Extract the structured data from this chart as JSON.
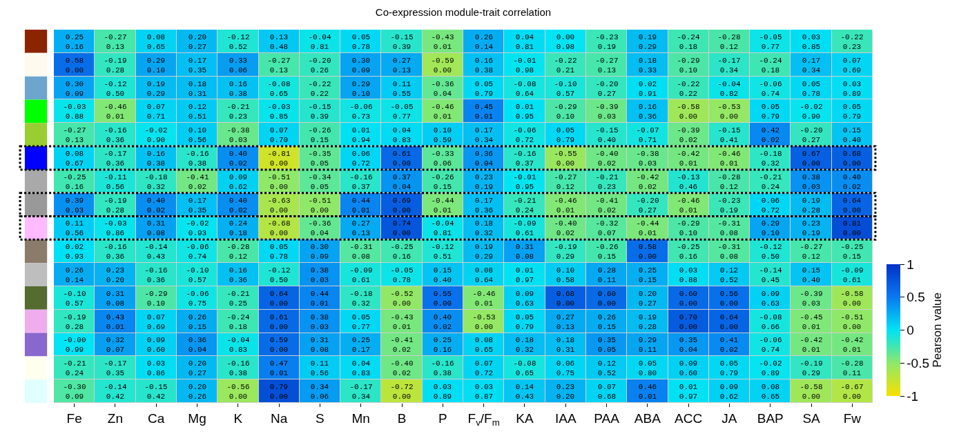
{
  "chart_data": {
    "type": "heatmap",
    "title": "Co-expression module-trait correlation",
    "clabel": "Pearson value",
    "categories": [
      "Fe",
      "Zn",
      "Ca",
      "Mg",
      "K",
      "Na",
      "S",
      "Mn",
      "B",
      "P",
      "F$_{v}$/F$_{m}$",
      "KA",
      "IAA",
      "PAA",
      "ABA",
      "ACC",
      "JA",
      "BAP",
      "SA",
      "Fw"
    ],
    "y_categories": [
      null,
      null,
      null,
      null,
      null,
      null,
      null,
      null,
      null,
      null,
      null,
      null,
      null,
      null,
      null,
      null
    ],
    "tick_labels": "x",
    "clim": [
      -1,
      1
    ],
    "cticks": [
      -1,
      -0.5,
      0,
      0.5,
      1
    ],
    "cells": [
      [
        0.25,
        -0.27,
        0.08,
        0.2,
        -0.12,
        0.13,
        -0.04,
        0.05,
        -0.15,
        -0.43,
        0.26,
        0.04,
        0.0,
        -0.23,
        0.19,
        -0.24,
        -0.28,
        -0.05,
        0.03,
        -0.22
      ],
      [
        0.58,
        -0.19,
        0.29,
        0.17,
        0.33,
        -0.27,
        -0.2,
        0.3,
        0.27,
        -0.59,
        0.16,
        -0.01,
        -0.22,
        -0.27,
        0.18,
        -0.29,
        -0.17,
        -0.24,
        0.17,
        0.07
      ],
      [
        0.3,
        -0.12,
        0.19,
        0.18,
        0.16,
        -0.08,
        -0.22,
        0.29,
        0.11,
        -0.36,
        0.05,
        -0.08,
        -0.1,
        -0.2,
        0.02,
        -0.22,
        -0.04,
        -0.06,
        0.05,
        0.03
      ],
      [
        -0.03,
        -0.46,
        0.07,
        0.12,
        -0.21,
        -0.03,
        -0.15,
        -0.06,
        -0.05,
        -0.46,
        0.45,
        0.01,
        -0.29,
        -0.39,
        0.16,
        -0.58,
        -0.53,
        0.05,
        -0.02,
        0.05
      ],
      [
        -0.27,
        -0.16,
        -0.02,
        0.1,
        -0.38,
        0.07,
        -0.26,
        0.01,
        0.04,
        0.1,
        0.17,
        -0.06,
        0.05,
        -0.15,
        -0.07,
        -0.39,
        -0.15,
        0.42,
        -0.2,
        0.15
      ],
      [
        0.08,
        -0.17,
        0.16,
        -0.16,
        0.4,
        -0.81,
        -0.35,
        0.06,
        0.61,
        -0.33,
        0.36,
        -0.16,
        -0.55,
        -0.4,
        -0.38,
        -0.42,
        -0.46,
        -0.18,
        0.67,
        0.68
      ],
      [
        -0.25,
        -0.11,
        -0.18,
        -0.41,
        0.09,
        -0.51,
        -0.34,
        -0.16,
        0.37,
        -0.26,
        0.23,
        -0.01,
        -0.27,
        -0.21,
        -0.42,
        -0.13,
        -0.28,
        -0.21,
        0.38,
        0.4
      ],
      [
        0.39,
        -0.19,
        0.4,
        0.17,
        0.4,
        -0.63,
        -0.51,
        0.44,
        0.69,
        -0.44,
        0.17,
        -0.21,
        -0.46,
        -0.41,
        -0.2,
        -0.46,
        -0.23,
        0.06,
        0.19,
        0.64
      ],
      [
        0.11,
        -0.03,
        0.31,
        -0.02,
        0.24,
        -0.68,
        -0.36,
        0.27,
        0.74,
        -0.04,
        0.18,
        -0.09,
        -0.4,
        -0.32,
        -0.44,
        -0.29,
        -0.31,
        0.29,
        0.23,
        0.81
      ],
      [
        0.02,
        -0.16,
        -0.14,
        -0.06,
        -0.28,
        0.05,
        0.3,
        -0.31,
        -0.25,
        -0.12,
        0.19,
        0.31,
        -0.19,
        -0.26,
        0.58,
        -0.25,
        -0.31,
        -0.12,
        -0.27,
        -0.25
      ],
      [
        0.26,
        0.23,
        -0.16,
        -0.1,
        0.16,
        -0.12,
        0.38,
        -0.09,
        -0.05,
        0.15,
        0.08,
        0.01,
        0.1,
        0.28,
        0.25,
        0.03,
        0.12,
        -0.14,
        0.15,
        -0.09
      ],
      [
        -0.1,
        0.31,
        -0.29,
        -0.06,
        -0.21,
        0.64,
        0.44,
        -0.18,
        -0.52,
        0.55,
        -0.46,
        0.09,
        0.68,
        0.6,
        0.2,
        0.6,
        0.56,
        0.09,
        -0.39,
        -0.58
      ],
      [
        -0.19,
        0.43,
        0.07,
        0.26,
        -0.24,
        0.61,
        0.38,
        0.05,
        -0.43,
        0.4,
        -0.53,
        0.05,
        0.27,
        0.26,
        0.19,
        0.7,
        0.64,
        -0.08,
        -0.45,
        -0.51
      ],
      [
        -0.0,
        0.32,
        0.09,
        0.36,
        -0.04,
        0.59,
        0.31,
        0.25,
        -0.41,
        0.25,
        0.08,
        0.18,
        0.18,
        0.35,
        0.29,
        0.35,
        0.41,
        -0.06,
        -0.42,
        -0.42
      ],
      [
        -0.21,
        -0.17,
        0.03,
        0.2,
        -0.16,
        0.47,
        0.11,
        0.04,
        -0.4,
        -0.16,
        0.07,
        -0.08,
        0.06,
        0.12,
        0.05,
        0.09,
        0.05,
        -0.02,
        -0.19,
        -0.28
      ],
      [
        -0.3,
        -0.14,
        -0.15,
        0.2,
        -0.56,
        0.79,
        0.34,
        -0.17,
        -0.72,
        0.03,
        0.03,
        0.14,
        0.23,
        0.07,
        0.46,
        0.01,
        0.09,
        0.08,
        -0.58,
        -0.67
      ]
    ],
    "cell_labels": [
      [
        "0.25\n0.16",
        "-0.27\n0.13",
        "0.08\n0.65",
        "0.20\n0.27",
        "-0.12\n0.52",
        "0.13\n0.48",
        "-0.04\n0.81",
        "0.05\n0.78",
        "-0.15\n0.39",
        "-0.43\n0.01",
        "0.26\n0.14",
        "0.04\n0.81",
        "0.00\n0.98",
        "-0.23\n0.19",
        "0.19\n0.29",
        "-0.24\n0.18",
        "-0.28\n0.12",
        "-0.05\n0.77",
        "0.03\n0.85",
        "-0.22\n0.23"
      ],
      [
        "0.58\n0.00",
        "-0.19\n0.28",
        "0.29\n0.10",
        "0.17\n0.35",
        "0.33\n0.06",
        "-0.27\n0.13",
        "-0.20\n0.26",
        "0.30\n0.09",
        "0.27\n0.13",
        "-0.59\n0.00",
        "0.16\n0.38",
        "-0.01\n0.98",
        "-0.22\n0.21",
        "-0.27\n0.13",
        "0.18\n0.33",
        "-0.29\n0.10",
        "-0.17\n0.34",
        "-0.24\n0.18",
        "0.17\n0.34",
        "0.07\n0.69"
      ],
      [
        "0.30\n0.09",
        "-0.12\n0.50",
        "0.19\n0.29",
        "0.18\n0.31",
        "0.16\n0.38",
        "-0.08\n0.65",
        "-0.22\n0.22",
        "0.29\n0.10",
        "0.11\n0.55",
        "-0.36\n0.04",
        "0.05\n0.79",
        "-0.08\n0.64",
        "-0.10\n0.57",
        "-0.20\n0.27",
        "0.02\n0.91",
        "-0.22\n0.22",
        "-0.04\n0.82",
        "-0.06\n0.74",
        "0.05\n0.78",
        "0.03\n0.89"
      ],
      [
        "-0.03\n0.88",
        "-0.46\n0.01",
        "0.07\n0.71",
        "0.12\n0.51",
        "-0.21\n0.23",
        "-0.03\n0.85",
        "-0.15\n0.39",
        "-0.06\n0.73",
        "-0.05\n0.77",
        "-0.46\n0.01",
        "0.45\n0.01",
        "0.01\n0.95",
        "-0.29\n0.10",
        "-0.39\n0.03",
        "0.16\n0.36",
        "-0.58\n0.00",
        "-0.53\n0.00",
        "0.05\n0.79",
        "-0.02\n0.90",
        "0.05\n0.79"
      ],
      [
        "-0.27\n0.13",
        "-0.16\n0.36",
        "-0.02\n0.90",
        "0.10\n0.56",
        "-0.38\n0.03",
        "0.07\n0.70",
        "-0.26\n0.15",
        "0.01\n0.94",
        "0.04\n0.83",
        "0.10\n0.59",
        "0.17\n0.34",
        "-0.06\n0.72",
        "0.05\n0.79",
        "-0.15\n0.40",
        "-0.07\n0.71",
        "-0.39\n0.02",
        "-0.15\n0.41",
        "0.42\n0.02",
        "-0.20\n0.27",
        "0.15\n0.40"
      ],
      [
        "0.08\n0.67",
        "-0.17\n0.36",
        "0.16\n0.38",
        "-0.16\n0.38",
        "0.40\n0.02",
        "-0.81\n0.00",
        "-0.35\n0.05",
        "0.06\n0.72",
        "0.61\n0.00",
        "-0.33\n0.06",
        "0.36\n0.04",
        "-0.16\n0.37",
        "-0.55\n0.00",
        "-0.40\n0.02",
        "-0.38\n0.03",
        "-0.42\n0.01",
        "-0.46\n0.01",
        "-0.18\n0.32",
        "0.67\n0.00",
        "0.68\n0.00"
      ],
      [
        "-0.25\n0.16",
        "-0.11\n0.56",
        "-0.18\n0.32",
        "-0.41\n0.02",
        "0.09\n0.62",
        "-0.51\n0.00",
        "-0.34\n0.05",
        "-0.16\n0.37",
        "0.37\n0.04",
        "-0.26\n0.15",
        "0.23\n0.19",
        "-0.01\n0.95",
        "-0.27\n0.12",
        "-0.21\n0.23",
        "-0.42\n0.02",
        "-0.13\n0.46",
        "-0.28\n0.12",
        "-0.21\n0.24",
        "0.38\n0.03",
        "0.40\n0.02"
      ],
      [
        "0.39\n0.03",
        "-0.19\n0.28",
        "0.40\n0.02",
        "0.17\n0.35",
        "0.40\n0.02",
        "-0.63\n0.00",
        "-0.51\n0.00",
        "0.44\n0.01",
        "0.69\n0.00",
        "-0.44\n0.01",
        "0.17\n0.36",
        "-0.21\n0.24",
        "-0.46\n0.01",
        "-0.41\n0.02",
        "-0.20\n0.27",
        "-0.46\n0.01",
        "-0.23\n0.19",
        "0.06\n0.72",
        "0.19\n0.28",
        "0.64\n0.00"
      ],
      [
        "0.11\n0.56",
        "-0.03\n0.86",
        "0.31\n0.08",
        "-0.02\n0.93",
        "0.24\n0.18",
        "-0.68\n0.00",
        "-0.36\n0.04",
        "0.27\n0.13",
        "0.74\n0.00",
        "-0.04\n0.81",
        "0.18\n0.32",
        "-0.09\n0.61",
        "-0.40\n0.02",
        "-0.32\n0.07",
        "-0.44\n0.01",
        "-0.29\n0.10",
        "-0.31\n0.08",
        "0.29\n0.10",
        "0.23\n0.19",
        "0.81\n0.00"
      ],
      [
        "0.02\n0.93",
        "-0.16\n0.36",
        "-0.14\n0.43",
        "-0.06\n0.74",
        "-0.28\n0.12",
        "0.05\n0.78",
        "0.30\n0.09",
        "-0.31\n0.08",
        "-0.25\n0.16",
        "-0.12\n0.51",
        "0.19\n0.29",
        "0.31\n0.08",
        "-0.19\n0.29",
        "-0.26\n0.15",
        "0.58\n0.00",
        "-0.25\n0.16",
        "-0.31\n0.08",
        "-0.12\n0.50",
        "-0.27\n0.12",
        "-0.25\n0.15"
      ],
      [
        "0.26\n0.14",
        "0.23\n0.20",
        "-0.16\n0.36",
        "-0.10\n0.57",
        "0.16\n0.36",
        "-0.12\n0.50",
        "0.38\n0.03",
        "-0.09\n0.61",
        "-0.05\n0.78",
        "0.15\n0.40",
        "0.08\n0.64",
        "0.01\n0.97",
        "0.10\n0.58",
        "0.28\n0.11",
        "0.25\n0.15",
        "0.03\n0.88",
        "0.12\n0.52",
        "-0.14\n0.45",
        "0.15\n0.40",
        "-0.09\n0.61"
      ],
      [
        "-0.10\n0.57",
        "0.31\n0.08",
        "-0.29\n0.10",
        "-0.06\n0.75",
        "-0.21\n0.25",
        "0.64\n0.00",
        "0.44\n0.01",
        "-0.18\n0.32",
        "-0.52\n0.00",
        "0.55\n0.00",
        "-0.46\n0.01",
        "0.09\n0.63",
        "0.68\n0.00",
        "0.60\n0.00",
        "0.20\n0.27",
        "0.60\n0.00",
        "0.56\n0.00",
        "0.09\n0.63",
        "-0.39\n0.03",
        "-0.58\n0.00"
      ],
      [
        "-0.19\n0.28",
        "0.43\n0.01",
        "0.07\n0.69",
        "0.26\n0.15",
        "-0.24\n0.18",
        "0.61\n0.00",
        "0.38\n0.03",
        "0.05\n0.77",
        "-0.43\n0.01",
        "0.40\n0.02",
        "-0.53\n0.00",
        "0.05\n0.79",
        "0.27\n0.13",
        "0.26\n0.15",
        "0.19\n0.28",
        "0.70\n0.00",
        "0.64\n0.00",
        "-0.08\n0.66",
        "-0.45\n0.01",
        "-0.51\n0.00"
      ],
      [
        "-0.00\n0.99",
        "0.32\n0.07",
        "0.09\n0.60",
        "0.36\n0.04",
        "-0.04\n0.83",
        "0.59\n0.00",
        "0.31\n0.08",
        "0.25\n0.17",
        "-0.41\n0.02",
        "0.25\n0.16",
        "0.08\n0.65",
        "0.18\n0.32",
        "0.18\n0.31",
        "0.35\n0.05",
        "0.29\n0.11",
        "0.35\n0.04",
        "0.41\n0.02",
        "-0.06\n0.74",
        "-0.42\n0.01",
        "-0.42\n0.01"
      ],
      [
        "-0.21\n0.24",
        "-0.17\n0.35",
        "0.03\n0.86",
        "0.20\n0.27",
        "-0.16\n0.38",
        "0.47\n0.01",
        "0.11\n0.56",
        "0.04\n0.83",
        "-0.40\n0.02",
        "-0.16\n0.38",
        "0.07\n0.72",
        "-0.08\n0.65",
        "0.06\n0.75",
        "0.12\n0.52",
        "0.05\n0.80",
        "0.09\n0.60",
        "0.05\n0.79",
        "-0.02\n0.89",
        "-0.19\n0.29",
        "-0.28\n0.11"
      ],
      [
        "-0.30\n0.09",
        "-0.14\n0.42",
        "-0.15\n0.42",
        "0.20\n0.26",
        "-0.56\n0.00",
        "0.79\n0.00",
        "0.34\n0.06",
        "-0.17\n0.34",
        "-0.72\n0.00",
        "0.03\n0.89",
        "0.03\n0.87",
        "0.14\n0.43",
        "0.23\n0.20",
        "0.07\n0.68",
        "0.46\n0.01",
        "0.01\n0.97",
        "0.09\n0.62",
        "0.08\n0.65",
        "-0.58\n0.00",
        "-0.67\n0.00"
      ]
    ]
  }
}
